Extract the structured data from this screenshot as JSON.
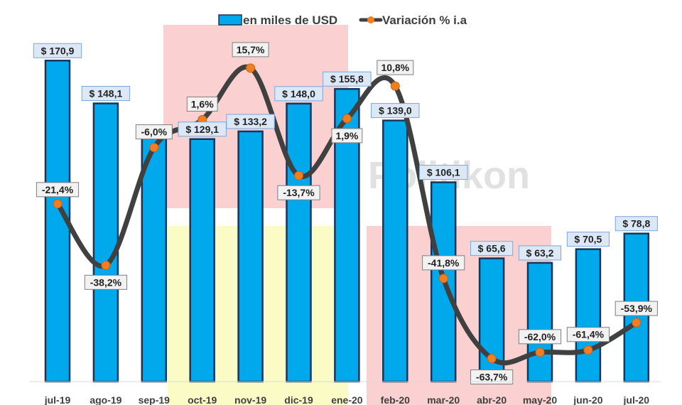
{
  "chart_data": {
    "type": "bar",
    "categories": [
      "jul-19",
      "ago-19",
      "sep-19",
      "oct-19",
      "nov-19",
      "dic-19",
      "ene-20",
      "feb-20",
      "mar-20",
      "abr-20",
      "may-20",
      "jun-20",
      "jul-20"
    ],
    "series": [
      {
        "name": "en miles de USD",
        "type": "bar",
        "values": [
          170.9,
          148.1,
          129.6,
          129.1,
          133.2,
          148.0,
          155.8,
          139.0,
          106.1,
          65.6,
          63.2,
          70.5,
          78.8
        ],
        "labels": [
          "$ 170,9",
          "$ 148,1",
          "",
          "$ 129,1",
          "$ 133,2",
          "$ 148,0",
          "$ 155,8",
          "$ 139,0",
          "$ 106,1",
          "$ 65,6",
          "$ 63,2",
          "$ 70,5",
          "$ 78,8"
        ]
      },
      {
        "name": "Variación % i.a",
        "type": "line",
        "values": [
          -21.4,
          -38.2,
          -6.0,
          1.6,
          15.7,
          -13.7,
          1.9,
          10.8,
          -41.8,
          -63.7,
          -62.0,
          -61.4,
          -53.9
        ],
        "labels": [
          "-21,4%",
          "-38,2%",
          "-6,0%",
          "1,6%",
          "15,7%",
          "-13,7%",
          "1,9%",
          "10,8%",
          "-41,8%",
          "-63,7%",
          "-62,0%",
          "-61,4%",
          "-53,9%"
        ]
      }
    ],
    "ylim_bars": [
      0,
      185
    ],
    "ylim_line": [
      -70,
      25
    ],
    "legend_position": "top-center",
    "grid": false,
    "watermark": "Politikon",
    "colors": {
      "bar_fill": "#00a8ec",
      "bar_stroke": "#16365c",
      "line": "#404040",
      "marker": "#f07f22",
      "label_bg": "#dde8f7",
      "label_border": "#7da6d9",
      "pct_bg": "#f2f2f2",
      "pct_border": "#7f7f7f",
      "band_red": "#fbd0d0",
      "band_yellow": "#fbfbc6"
    }
  }
}
